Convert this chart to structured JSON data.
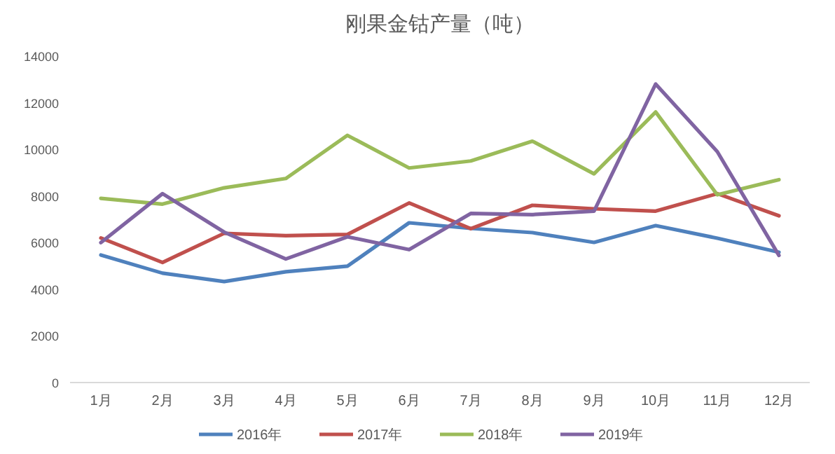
{
  "chart_data": {
    "type": "line",
    "title": "刚果金钴产量（吨）",
    "categories": [
      "1月",
      "2月",
      "3月",
      "4月",
      "5月",
      "6月",
      "7月",
      "8月",
      "9月",
      "10月",
      "11月",
      "12月"
    ],
    "series": [
      {
        "name": "2016年",
        "color": "#4f81bd",
        "values": [
          5470,
          4690,
          4330,
          4750,
          4990,
          6850,
          6610,
          6430,
          6010,
          6730,
          6190,
          5590
        ]
      },
      {
        "name": "2017年",
        "color": "#c0504d",
        "values": [
          6200,
          5150,
          6400,
          6300,
          6350,
          7700,
          6600,
          7600,
          7450,
          7350,
          8100,
          7150
        ]
      },
      {
        "name": "2018年",
        "color": "#9bbb59",
        "values": [
          7900,
          7650,
          8350,
          8750,
          10600,
          9200,
          9500,
          10350,
          8950,
          11600,
          8050,
          8700
        ]
      },
      {
        "name": "2019年",
        "color": "#8064a2",
        "values": [
          6000,
          8100,
          6450,
          5300,
          6250,
          5700,
          7250,
          7200,
          7350,
          12800,
          9900,
          5450
        ]
      }
    ],
    "ylim": [
      0,
      14000
    ],
    "yticks": [
      0,
      2000,
      4000,
      6000,
      8000,
      10000,
      12000,
      14000
    ],
    "legend": "bottom"
  }
}
